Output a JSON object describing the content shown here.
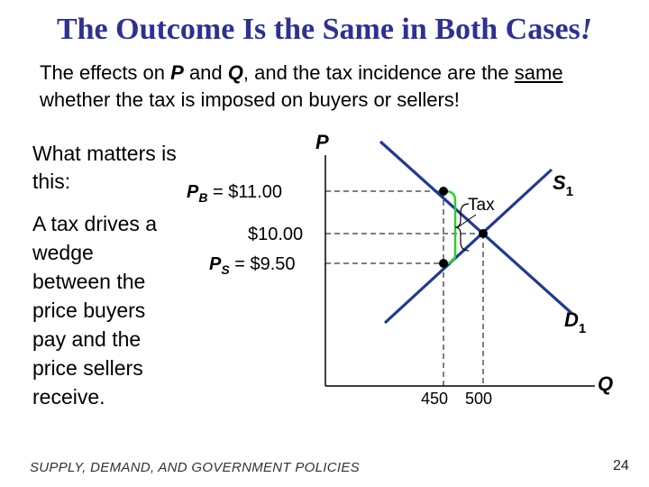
{
  "title": {
    "main": "The Outcome Is the Same in Both Cases",
    "exclaim": "!"
  },
  "subtitle": {
    "t1": "The effects on ",
    "p": "P",
    "t2": " and ",
    "q": "Q",
    "t3": ", and the tax incidence are the ",
    "same": "same",
    "t4": " whether the tax is imposed on buyers or sellers!"
  },
  "left_text": {
    "what_matters": "What matters is this:",
    "wedge": "A tax drives a wedge between the price buyers pay and the price sellers receive."
  },
  "graph": {
    "y_axis_label": "P",
    "x_axis_label": "Q",
    "supply_label": {
      "main": "S",
      "sub": "1"
    },
    "demand_label": {
      "main": "D",
      "sub": "1"
    },
    "pb_label": {
      "p": "P",
      "sub": "B",
      "rest": " = $11.00"
    },
    "mid_price": "$10.00",
    "ps_label": {
      "p": "P",
      "sub": "S",
      "rest": " = $9.50"
    },
    "tax_label": "Tax",
    "q_tick_450": "450",
    "q_tick_500": "500",
    "line_color": "#1f3a93",
    "bracket_color": "#33cc33"
  },
  "footer": "SUPPLY, DEMAND, AND GOVERNMENT POLICIES",
  "page_number": "24"
}
